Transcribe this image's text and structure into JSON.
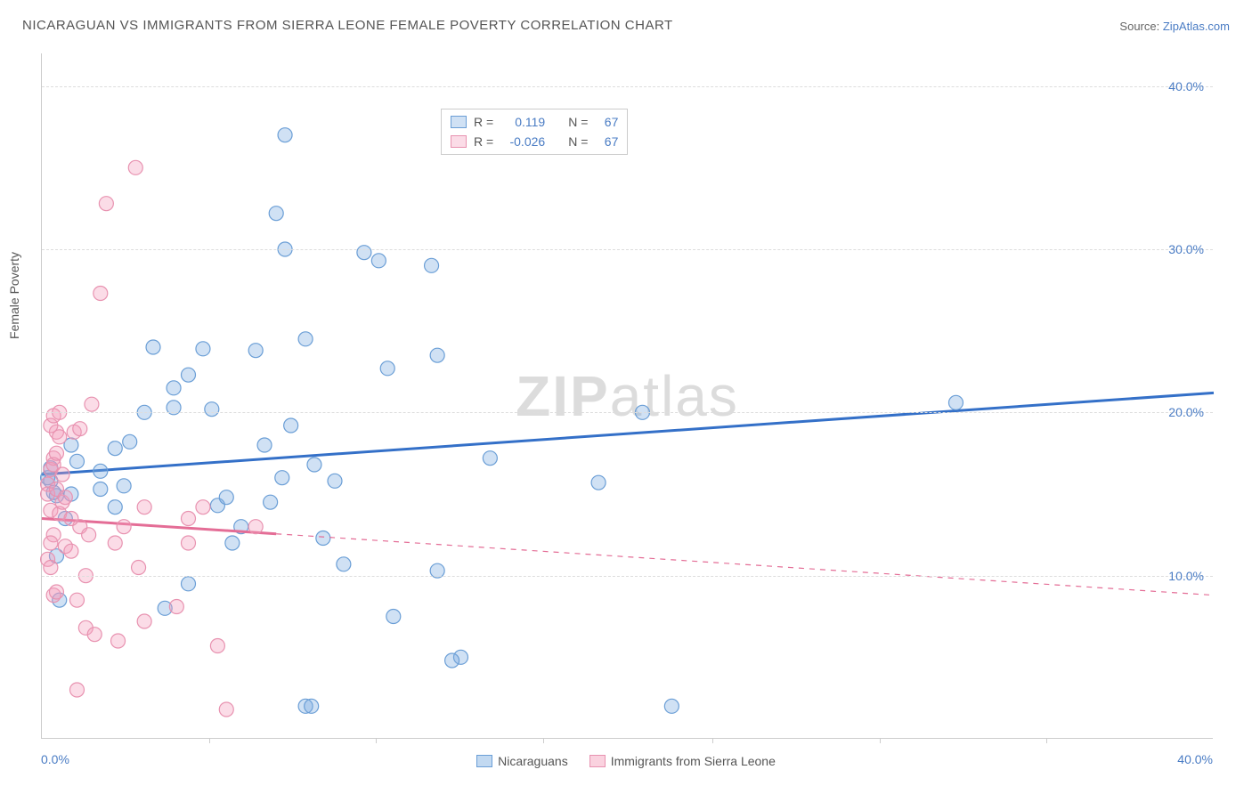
{
  "title": "NICARAGUAN VS IMMIGRANTS FROM SIERRA LEONE FEMALE POVERTY CORRELATION CHART",
  "source_label": "Source:",
  "source_site": "ZipAtlas.com",
  "watermark": "ZIPatlas",
  "ylabel": "Female Poverty",
  "chart": {
    "type": "scatter",
    "xlim": [
      0,
      40
    ],
    "ylim": [
      0,
      42
    ],
    "background_color": "#ffffff",
    "grid_color": "#dddddd",
    "axis_color": "#cccccc",
    "yticks": [
      10,
      20,
      30,
      40
    ],
    "ytick_labels": [
      "10.0%",
      "20.0%",
      "30.0%",
      "40.0%"
    ],
    "xticks_minor": [
      5.7,
      11.4,
      17.1,
      22.9,
      28.6,
      34.3
    ],
    "x_left_label": "0.0%",
    "x_right_label": "40.0%",
    "tick_label_color": "#4a7cc4",
    "marker_radius": 8,
    "marker_stroke_width": 1.2,
    "line_width": 3,
    "series": [
      {
        "name": "Nicaraguans",
        "fill": "rgba(120,170,224,0.35)",
        "stroke": "#6a9ed6",
        "line_color": "#3470c8",
        "line_dashed": false,
        "line_x1": 0,
        "line_y1": 16.2,
        "line_x2": 40,
        "line_y2": 21.2,
        "R": "0.119",
        "N": "67",
        "points": [
          [
            0.2,
            16.0
          ],
          [
            0.3,
            15.8
          ],
          [
            0.5,
            14.9
          ],
          [
            0.4,
            15.1
          ],
          [
            0.3,
            16.6
          ],
          [
            1.0,
            15.0
          ],
          [
            1.2,
            17.0
          ],
          [
            1.0,
            18.0
          ],
          [
            0.8,
            13.5
          ],
          [
            0.5,
            11.2
          ],
          [
            0.6,
            8.5
          ],
          [
            2.0,
            15.3
          ],
          [
            2.5,
            17.8
          ],
          [
            2.8,
            15.5
          ],
          [
            2.5,
            14.2
          ],
          [
            2.0,
            16.4
          ],
          [
            3.0,
            18.2
          ],
          [
            3.5,
            20.0
          ],
          [
            4.5,
            20.3
          ],
          [
            3.8,
            24.0
          ],
          [
            4.5,
            21.5
          ],
          [
            5.0,
            22.3
          ],
          [
            5.5,
            23.9
          ],
          [
            5.8,
            20.2
          ],
          [
            6.0,
            14.3
          ],
          [
            6.3,
            14.8
          ],
          [
            6.5,
            12.0
          ],
          [
            5.0,
            9.5
          ],
          [
            4.2,
            8.0
          ],
          [
            6.8,
            13.0
          ],
          [
            7.3,
            23.8
          ],
          [
            7.6,
            18.0
          ],
          [
            7.8,
            14.5
          ],
          [
            8.2,
            16.0
          ],
          [
            8.5,
            19.2
          ],
          [
            8.3,
            30.0
          ],
          [
            8.0,
            32.2
          ],
          [
            8.3,
            37.0
          ],
          [
            9.0,
            24.5
          ],
          [
            9.3,
            16.8
          ],
          [
            9.0,
            2.0
          ],
          [
            9.2,
            2.0
          ],
          [
            9.6,
            12.3
          ],
          [
            10.0,
            15.8
          ],
          [
            10.3,
            10.7
          ],
          [
            11.0,
            29.8
          ],
          [
            11.5,
            29.3
          ],
          [
            11.8,
            22.7
          ],
          [
            12.0,
            7.5
          ],
          [
            13.3,
            29.0
          ],
          [
            13.5,
            23.5
          ],
          [
            13.5,
            10.3
          ],
          [
            14.3,
            5.0
          ],
          [
            14.0,
            4.8
          ],
          [
            15.3,
            17.2
          ],
          [
            19.0,
            15.7
          ],
          [
            20.5,
            20.0
          ],
          [
            21.5,
            2.0
          ],
          [
            31.2,
            20.6
          ]
        ]
      },
      {
        "name": "Immigrants from Sierra Leone",
        "fill": "rgba(243,155,185,0.35)",
        "stroke": "#e892b0",
        "line_color": "#e46d96",
        "line_dashed": true,
        "line_solid_until_x": 8,
        "line_x1": 0,
        "line_y1": 13.5,
        "line_x2": 40,
        "line_y2": 8.8,
        "R": "-0.026",
        "N": "67",
        "points": [
          [
            0.2,
            15.6
          ],
          [
            0.2,
            15.0
          ],
          [
            0.3,
            16.5
          ],
          [
            0.3,
            14.0
          ],
          [
            0.4,
            17.2
          ],
          [
            0.4,
            16.8
          ],
          [
            0.5,
            18.8
          ],
          [
            0.5,
            17.5
          ],
          [
            0.5,
            15.3
          ],
          [
            0.6,
            13.8
          ],
          [
            0.4,
            12.5
          ],
          [
            0.3,
            12.0
          ],
          [
            0.2,
            11.0
          ],
          [
            0.6,
            18.5
          ],
          [
            0.7,
            16.2
          ],
          [
            0.7,
            14.5
          ],
          [
            0.8,
            14.8
          ],
          [
            0.3,
            19.2
          ],
          [
            0.4,
            19.8
          ],
          [
            0.6,
            20.0
          ],
          [
            0.8,
            11.8
          ],
          [
            0.3,
            10.5
          ],
          [
            0.4,
            8.8
          ],
          [
            0.5,
            9.0
          ],
          [
            1.1,
            18.8
          ],
          [
            1.3,
            19.0
          ],
          [
            1.3,
            13.0
          ],
          [
            1.0,
            13.5
          ],
          [
            1.0,
            11.5
          ],
          [
            1.2,
            8.5
          ],
          [
            1.5,
            10.0
          ],
          [
            1.6,
            12.5
          ],
          [
            1.5,
            6.8
          ],
          [
            1.8,
            6.4
          ],
          [
            1.2,
            3.0
          ],
          [
            1.7,
            20.5
          ],
          [
            2.0,
            27.3
          ],
          [
            2.2,
            32.8
          ],
          [
            2.5,
            12.0
          ],
          [
            2.8,
            13.0
          ],
          [
            2.6,
            6.0
          ],
          [
            3.2,
            35.0
          ],
          [
            3.5,
            14.2
          ],
          [
            3.3,
            10.5
          ],
          [
            3.5,
            7.2
          ],
          [
            4.6,
            8.1
          ],
          [
            5.0,
            12.0
          ],
          [
            5.0,
            13.5
          ],
          [
            5.5,
            14.2
          ],
          [
            6.0,
            5.7
          ],
          [
            6.3,
            1.8
          ],
          [
            7.3,
            13.0
          ]
        ]
      }
    ],
    "stats_box": {
      "R_label": "R =",
      "N_label": "N ="
    },
    "legend": {
      "items": [
        {
          "swatch_fill": "rgba(120,170,224,0.45)",
          "swatch_stroke": "#6a9ed6",
          "label": "Nicaraguans"
        },
        {
          "swatch_fill": "rgba(243,155,185,0.45)",
          "swatch_stroke": "#e892b0",
          "label": "Immigrants from Sierra Leone"
        }
      ]
    }
  }
}
